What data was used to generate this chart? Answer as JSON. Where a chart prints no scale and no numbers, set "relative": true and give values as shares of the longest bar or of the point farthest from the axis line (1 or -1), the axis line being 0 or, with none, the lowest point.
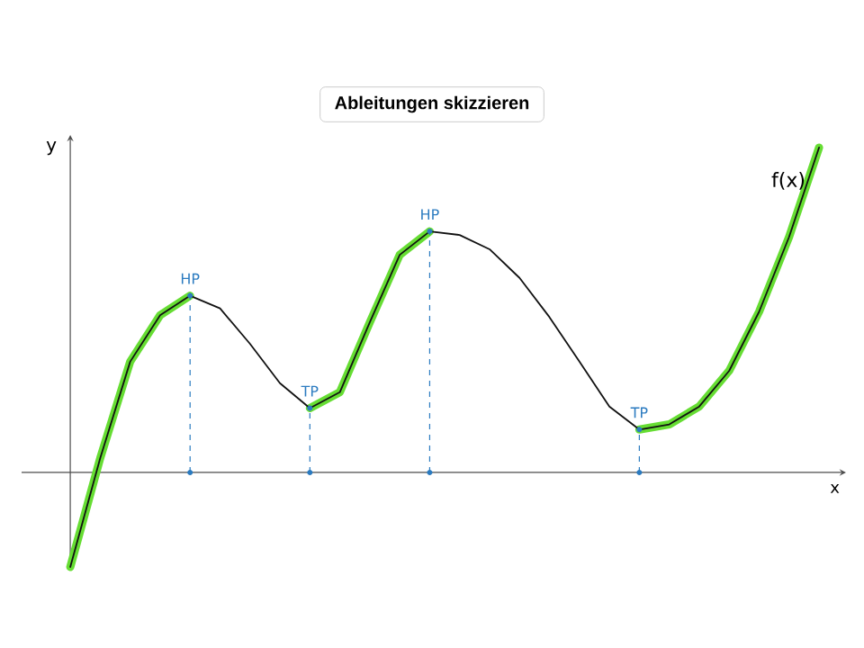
{
  "chart_data": {
    "type": "line",
    "title": "Ableitungen skizzieren",
    "xlabel": "x",
    "ylabel": "y",
    "relative": true,
    "marker": "none",
    "line_style": "solid",
    "categories": [
      null,
      null,
      null,
      null,
      null,
      null,
      null,
      null,
      null,
      null,
      null,
      null,
      null,
      null,
      null,
      null,
      null,
      null,
      null,
      null,
      null,
      null,
      null,
      null,
      null,
      null
    ],
    "series": [
      {
        "name": null,
        "color": "#66dd33",
        "values": [
          -0.291,
          0.044,
          0.341,
          0.484,
          0.544,
          null,
          null,
          null,
          0.198,
          0.247,
          0.462,
          0.67,
          0.742,
          null,
          null,
          null,
          null,
          null,
          null,
          0.132,
          0.148,
          0.203,
          0.313,
          0.495,
          0.725,
          1.0
        ]
      },
      {
        "name": "f(x)",
        "color": "#111111",
        "values": [
          -0.291,
          0.044,
          0.341,
          0.484,
          0.544,
          0.505,
          0.396,
          0.275,
          0.198,
          0.247,
          0.462,
          0.67,
          0.742,
          0.731,
          0.687,
          0.599,
          0.478,
          0.341,
          0.203,
          0.132,
          0.148,
          0.203,
          0.313,
          0.495,
          0.725,
          1.0
        ]
      }
    ],
    "annotations": [
      {
        "text": "HP",
        "y": 0.544
      },
      {
        "text": "TP",
        "y": 0.198
      },
      {
        "text": "HP",
        "y": 0.742
      },
      {
        "text": "TP",
        "y": 0.132
      }
    ]
  }
}
